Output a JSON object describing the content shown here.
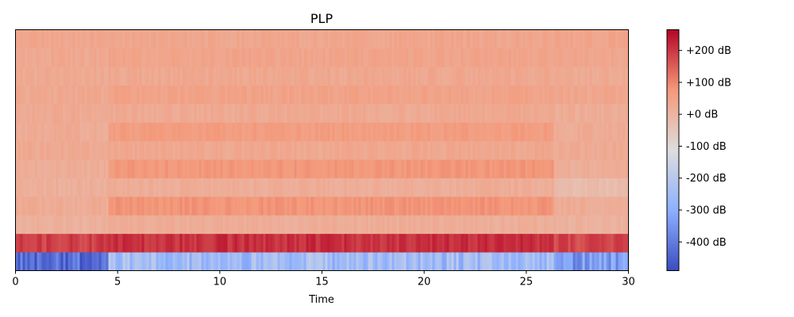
{
  "chart_data": {
    "type": "heatmap",
    "title": "PLP",
    "xlabel": "Time",
    "ylabel": "",
    "xlim": [
      0,
      30
    ],
    "x_ticks": [
      0,
      5,
      10,
      15,
      20,
      25,
      30
    ],
    "x_tick_labels": [
      "0",
      "5",
      "10",
      "15",
      "20",
      "25",
      "30"
    ],
    "n_bands": 13,
    "colormap": "coolwarm",
    "colorbar": {
      "vmin": -490,
      "vmax": 265,
      "ticks": [
        200,
        100,
        0,
        -100,
        -200,
        -300,
        -400
      ],
      "tick_labels": [
        "+200 dB",
        "+100 dB",
        "+0 dB",
        "-100 dB",
        "-200 dB",
        "-300 dB",
        "-400 dB"
      ]
    },
    "segments": [
      {
        "t0": 0,
        "t1": 4.5,
        "band_values_bottom_to_top": [
          -430,
          190,
          10,
          25,
          15,
          20,
          30,
          25,
          30,
          35,
          30,
          35,
          40
        ]
      },
      {
        "t0": 4.5,
        "t1": 26.4,
        "band_values_bottom_to_top": [
          -250,
          210,
          20,
          80,
          20,
          75,
          35,
          65,
          30,
          50,
          35,
          45,
          40
        ]
      },
      {
        "t0": 26.4,
        "t1": 30,
        "band_values_bottom_to_top": [
          -340,
          180,
          10,
          25,
          -20,
          20,
          30,
          25,
          20,
          40,
          30,
          40,
          45
        ]
      }
    ]
  }
}
